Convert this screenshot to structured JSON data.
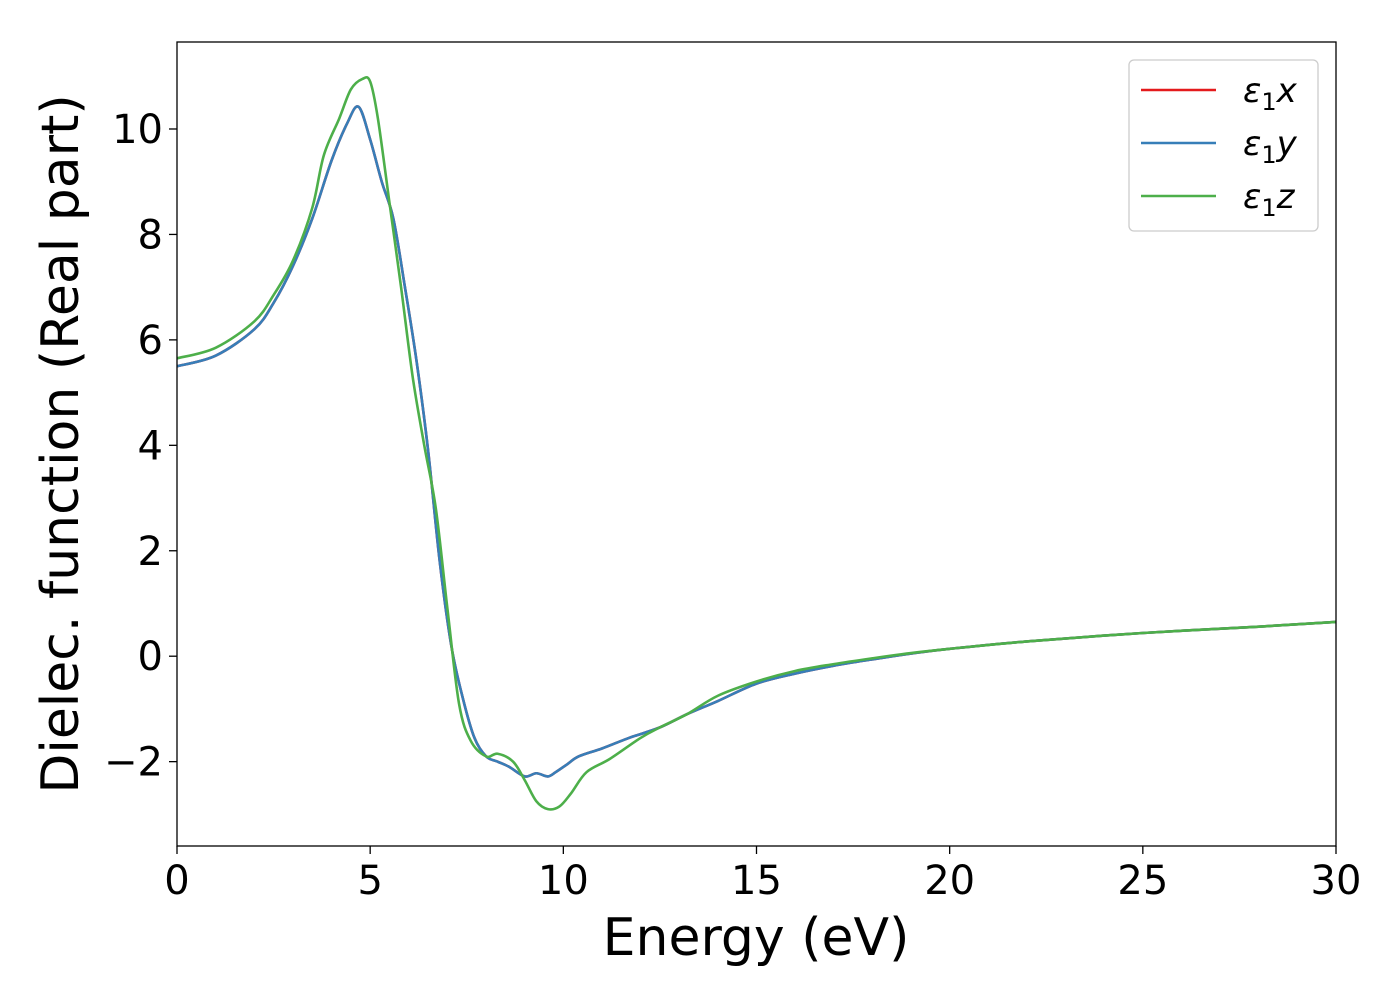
{
  "chart_data": {
    "type": "line",
    "title": "",
    "xlabel": "Energy (eV)",
    "ylabel": "Dielec. function (Real part)",
    "xlim": [
      0,
      30
    ],
    "ylim": [
      -3.6,
      11.65
    ],
    "xticks": [
      0,
      5,
      10,
      15,
      20,
      25,
      30
    ],
    "yticks": [
      -2,
      0,
      2,
      4,
      6,
      8,
      10
    ],
    "xtick_labels": [
      "0",
      "5",
      "10",
      "15",
      "20",
      "25",
      "30"
    ],
    "ytick_labels": [
      "−2",
      "0",
      "2",
      "4",
      "6",
      "8",
      "10"
    ],
    "grid": false,
    "legend_position": "top-right",
    "series": [
      {
        "name": "ε₁x",
        "legend": {
          "main": "ε",
          "sub": "1",
          "tail": "x"
        },
        "color": "#e41a1c",
        "x": [
          0,
          1,
          2,
          2.5,
          3,
          3.5,
          4,
          4.4,
          4.7,
          5.0,
          5.3,
          5.6,
          5.9,
          6.2,
          6.5,
          6.8,
          7.1,
          7.4,
          7.7,
          8.0,
          8.3,
          8.6,
          9.0,
          9.3,
          9.6,
          9.8,
          10.1,
          10.4,
          11,
          11.7,
          12.5,
          13.2,
          14,
          15,
          16,
          17,
          18,
          19,
          20,
          22,
          25,
          28,
          30
        ],
        "y": [
          5.5,
          5.7,
          6.2,
          6.7,
          7.4,
          8.3,
          9.4,
          10.1,
          10.42,
          9.8,
          9.0,
          8.3,
          7.0,
          5.6,
          3.9,
          1.8,
          0.2,
          -0.8,
          -1.55,
          -1.9,
          -2.0,
          -2.1,
          -2.28,
          -2.22,
          -2.28,
          -2.2,
          -2.05,
          -1.9,
          -1.75,
          -1.55,
          -1.35,
          -1.1,
          -0.85,
          -0.52,
          -0.33,
          -0.18,
          -0.06,
          0.05,
          0.14,
          0.28,
          0.44,
          0.56,
          0.65
        ]
      },
      {
        "name": "ε₁y",
        "legend": {
          "main": "ε",
          "sub": "1",
          "tail": "y"
        },
        "color": "#377eb8",
        "x": [
          0,
          1,
          2,
          2.5,
          3,
          3.5,
          4,
          4.4,
          4.7,
          5.0,
          5.3,
          5.6,
          5.9,
          6.2,
          6.5,
          6.8,
          7.1,
          7.4,
          7.7,
          8.0,
          8.3,
          8.6,
          9.0,
          9.3,
          9.6,
          9.8,
          10.1,
          10.4,
          11,
          11.7,
          12.5,
          13.2,
          14,
          15,
          16,
          17,
          18,
          19,
          20,
          22,
          25,
          28,
          30
        ],
        "y": [
          5.5,
          5.7,
          6.2,
          6.7,
          7.4,
          8.3,
          9.4,
          10.1,
          10.42,
          9.8,
          9.0,
          8.3,
          7.0,
          5.6,
          3.9,
          1.8,
          0.2,
          -0.8,
          -1.55,
          -1.9,
          -2.0,
          -2.1,
          -2.28,
          -2.22,
          -2.28,
          -2.2,
          -2.05,
          -1.9,
          -1.75,
          -1.55,
          -1.35,
          -1.1,
          -0.85,
          -0.52,
          -0.33,
          -0.18,
          -0.06,
          0.05,
          0.14,
          0.28,
          0.44,
          0.56,
          0.65
        ]
      },
      {
        "name": "ε₁z",
        "legend": {
          "main": "ε",
          "sub": "1",
          "tail": "z"
        },
        "color": "#4daf4a",
        "x": [
          0,
          1,
          2,
          2.5,
          3,
          3.5,
          3.8,
          4.2,
          4.5,
          4.8,
          5.0,
          5.2,
          5.5,
          5.8,
          6.1,
          6.4,
          6.7,
          7.0,
          7.3,
          7.6,
          8.0,
          8.3,
          8.7,
          9.0,
          9.3,
          9.6,
          9.9,
          10.2,
          10.6,
          11.2,
          12,
          12.5,
          13.2,
          14,
          15,
          16,
          17,
          18,
          19,
          20,
          22,
          25,
          28,
          30
        ],
        "y": [
          5.65,
          5.85,
          6.35,
          6.85,
          7.5,
          8.5,
          9.5,
          10.2,
          10.75,
          10.95,
          10.9,
          10.2,
          8.6,
          7.0,
          5.3,
          4.0,
          2.8,
          0.9,
          -0.9,
          -1.6,
          -1.9,
          -1.85,
          -2.0,
          -2.35,
          -2.75,
          -2.9,
          -2.85,
          -2.6,
          -2.2,
          -1.95,
          -1.55,
          -1.35,
          -1.1,
          -0.75,
          -0.48,
          -0.28,
          -0.15,
          -0.04,
          0.06,
          0.14,
          0.28,
          0.44,
          0.56,
          0.65
        ]
      }
    ]
  }
}
